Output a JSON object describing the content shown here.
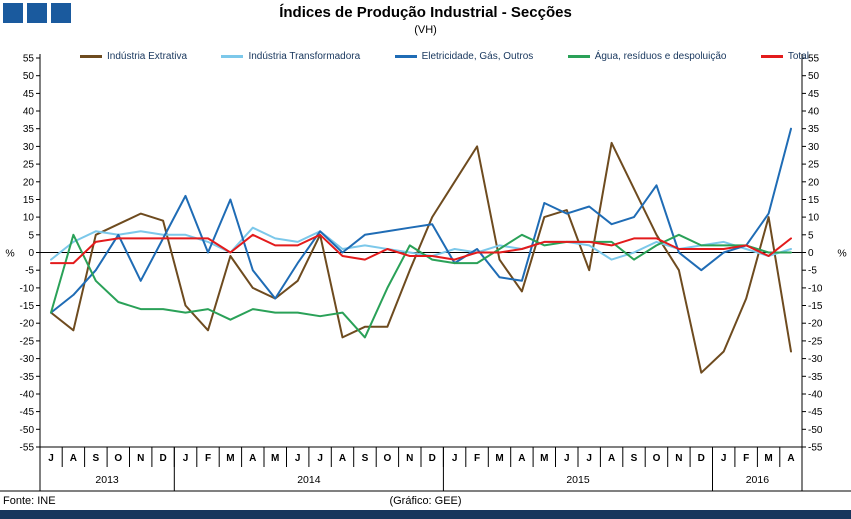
{
  "title": "Índices de Produção Industrial - Secções",
  "subtitle": "(VH)",
  "footer": {
    "source": "Fonte: INE",
    "credit": "(Gráfico: GEE)"
  },
  "colors": {
    "logo": "#1a5a9e",
    "bottom_bar": "#17365d",
    "legend_text": "#17365d",
    "axis": "#000000"
  },
  "chart_data": {
    "type": "line",
    "x": [
      "J",
      "A",
      "S",
      "O",
      "N",
      "D",
      "J",
      "F",
      "M",
      "A",
      "M",
      "J",
      "J",
      "A",
      "S",
      "O",
      "N",
      "D",
      "J",
      "F",
      "M",
      "A",
      "M",
      "J",
      "J",
      "A",
      "S",
      "O",
      "N",
      "D",
      "J",
      "F",
      "M",
      "A"
    ],
    "year_groups": [
      {
        "label": "2013",
        "span": 6
      },
      {
        "label": "2014",
        "span": 12
      },
      {
        "label": "2015",
        "span": 12
      },
      {
        "label": "2016",
        "span": 4
      }
    ],
    "ylim": [
      -55,
      55
    ],
    "y_tick_step": 5,
    "ylabel": "%",
    "ylabel_right": "%",
    "grid": false,
    "legend_position": "top",
    "series": [
      {
        "name": "Indústria Extrativa",
        "color": "#6e4b1f",
        "values": [
          -17,
          -22,
          5,
          8,
          11,
          9,
          -15,
          -22,
          -1,
          -10,
          -13,
          -8,
          5,
          -24,
          -21,
          -21,
          -5,
          10,
          20,
          30,
          -2,
          -11,
          10,
          12,
          -5,
          31,
          18,
          5,
          -5,
          -34,
          -28,
          -13,
          10,
          -28
        ]
      },
      {
        "name": "Indústria Transformadora",
        "color": "#7cc8ea",
        "values": [
          -2,
          3,
          6,
          5,
          6,
          5,
          5,
          3,
          0,
          7,
          4,
          3,
          6,
          1,
          2,
          1,
          0,
          -1,
          1,
          0,
          2,
          1,
          3,
          3,
          2,
          -2,
          0,
          3,
          1,
          2,
          3,
          1,
          -1,
          1
        ]
      },
      {
        "name": "Eletricidade, Gás, Outros",
        "color": "#1f6cb5",
        "values": [
          -17,
          -12,
          -5,
          5,
          -8,
          4,
          16,
          0,
          15,
          -5,
          -13,
          -3,
          6,
          0,
          5,
          6,
          7,
          8,
          -3,
          1,
          -7,
          -8,
          14,
          11,
          13,
          8,
          10,
          19,
          0,
          -5,
          0,
          2,
          11,
          35
        ]
      },
      {
        "name": "Água, resíduos e despoluição",
        "color": "#2aa158",
        "values": [
          -17,
          5,
          -8,
          -14,
          -16,
          -16,
          -17,
          -16,
          -19,
          -16,
          -17,
          -17,
          -18,
          -17,
          -24,
          -10,
          2,
          -2,
          -3,
          -3,
          1,
          5,
          2,
          3,
          3,
          3,
          -2,
          2,
          5,
          2,
          2,
          2,
          0,
          0
        ]
      },
      {
        "name": "Total",
        "color": "#e31b1c",
        "values": [
          -3,
          -3,
          3,
          4,
          4,
          4,
          4,
          4,
          0,
          5,
          2,
          2,
          5,
          -1,
          -2,
          1,
          -1,
          -1,
          -2,
          0,
          0,
          1,
          3,
          3,
          3,
          2,
          4,
          4,
          1,
          1,
          1,
          2,
          -1,
          4
        ]
      }
    ]
  }
}
